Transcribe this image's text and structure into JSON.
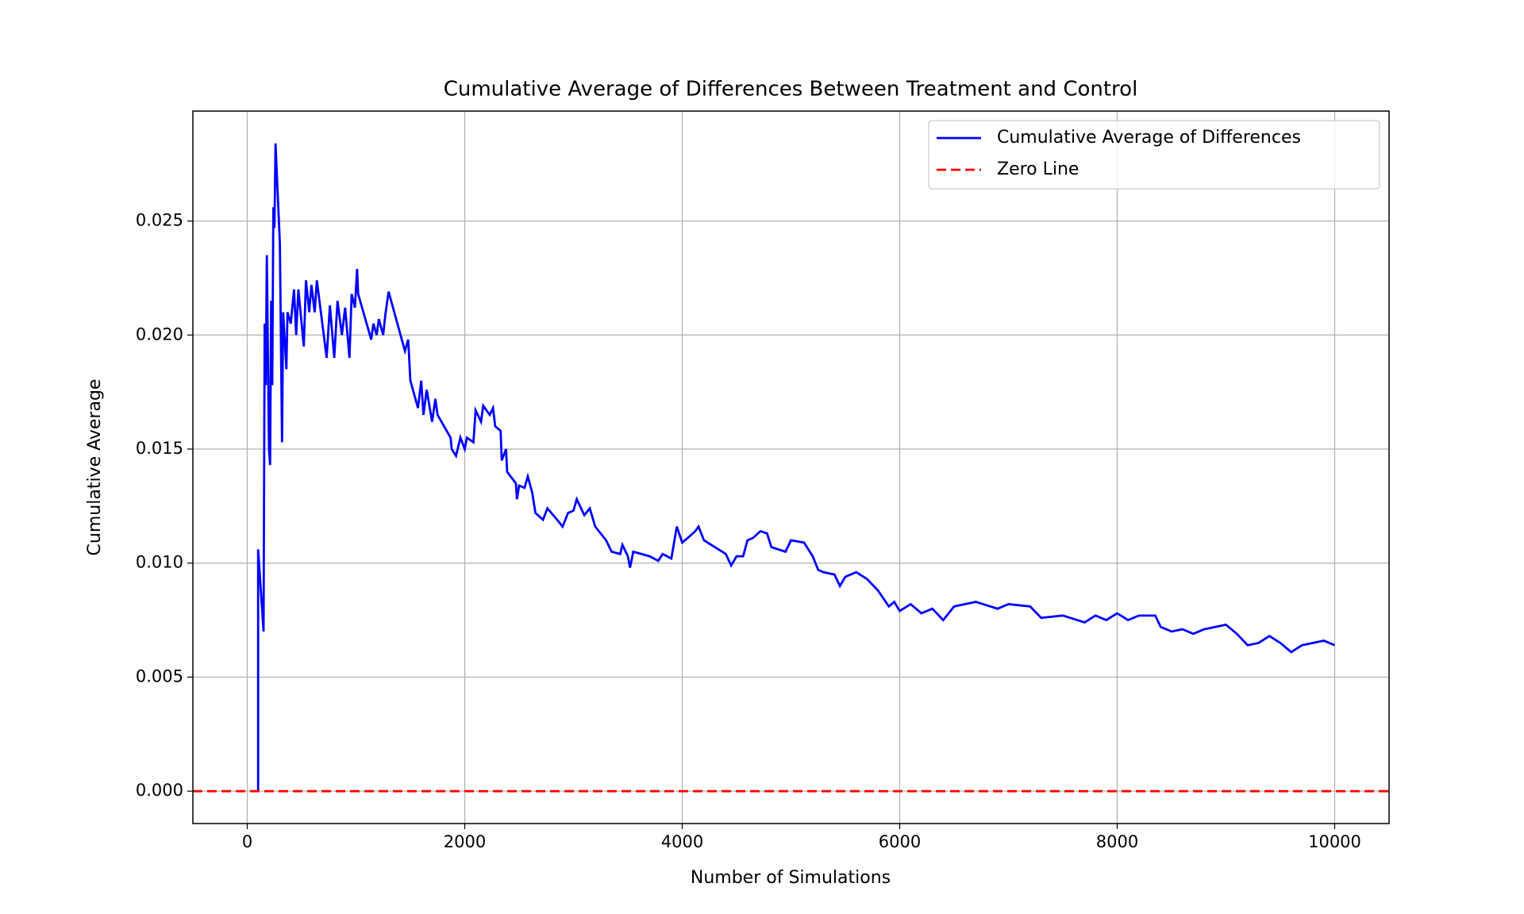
{
  "chart_data": {
    "type": "line",
    "title": "Cumulative Average of Differences Between Treatment and Control",
    "x_label": "Number of Simulations",
    "y_label": "Cumulative Average",
    "xlim": [
      -500,
      10500
    ],
    "ylim": [
      -0.00142,
      0.02982
    ],
    "xticks": [
      0,
      2000,
      4000,
      6000,
      8000,
      10000
    ],
    "yticks": [
      {
        "value": 0,
        "label": "0.000"
      },
      {
        "value": 0.005,
        "label": "0.005"
      },
      {
        "value": 0.01,
        "label": "0.010"
      },
      {
        "value": 0.015,
        "label": "0.015"
      },
      {
        "value": 0.02,
        "label": "0.020"
      },
      {
        "value": 0.025,
        "label": "0.025"
      }
    ],
    "grid": true,
    "legend": "upper right",
    "series": [
      {
        "name": "Cumulative Average of Differences",
        "color": "#0000ff",
        "dash": "solid",
        "x": [
          100,
          100,
          150,
          160,
          170,
          180,
          200,
          210,
          220,
          230,
          240,
          250,
          260,
          300,
          320,
          330,
          360,
          370,
          400,
          430,
          450,
          470,
          520,
          540,
          570,
          590,
          620,
          640,
          730,
          760,
          800,
          830,
          870,
          900,
          940,
          960,
          990,
          1010,
          1020,
          1140,
          1160,
          1190,
          1210,
          1250,
          1270,
          1300,
          1450,
          1480,
          1500,
          1570,
          1600,
          1620,
          1650,
          1700,
          1730,
          1750,
          1870,
          1880,
          1920,
          1960,
          2000,
          2020,
          2080,
          2100,
          2150,
          2170,
          2230,
          2260,
          2280,
          2330,
          2340,
          2380,
          2390,
          2470,
          2480,
          2500,
          2550,
          2580,
          2620,
          2650,
          2720,
          2760,
          2850,
          2900,
          2950,
          3000,
          3030,
          3100,
          3150,
          3200,
          3300,
          3350,
          3430,
          3450,
          3500,
          3520,
          3550,
          3700,
          3780,
          3820,
          3900,
          3950,
          4000,
          4050,
          4120,
          4150,
          4200,
          4300,
          4400,
          4450,
          4500,
          4560,
          4600,
          4650,
          4720,
          4780,
          4820,
          4950,
          5000,
          5120,
          5200,
          5250,
          5300,
          5400,
          5450,
          5500,
          5600,
          5700,
          5800,
          5900,
          5950,
          6000,
          6100,
          6200,
          6300,
          6400,
          6500,
          6700,
          6900,
          7000,
          7200,
          7300,
          7500,
          7700,
          7800,
          7900,
          8000,
          8100,
          8200,
          8350,
          8400,
          8500,
          8600,
          8700,
          8800,
          8900,
          9000,
          9100,
          9200,
          9300,
          9400,
          9500,
          9600,
          9700,
          9800,
          9900,
          10000
        ],
        "values": [
          0,
          0.0106,
          0.007,
          0.0205,
          0.0178,
          0.0235,
          0.015,
          0.0143,
          0.0215,
          0.0178,
          0.0256,
          0.0247,
          0.0284,
          0.024,
          0.0153,
          0.021,
          0.0185,
          0.021,
          0.0205,
          0.022,
          0.02,
          0.022,
          0.0195,
          0.0224,
          0.021,
          0.0222,
          0.021,
          0.0224,
          0.019,
          0.0213,
          0.019,
          0.0215,
          0.02,
          0.0212,
          0.019,
          0.0218,
          0.0212,
          0.0229,
          0.0218,
          0.0198,
          0.0205,
          0.02,
          0.0207,
          0.02,
          0.0209,
          0.0219,
          0.0193,
          0.0198,
          0.018,
          0.0168,
          0.018,
          0.0165,
          0.0176,
          0.0162,
          0.0172,
          0.0165,
          0.0155,
          0.015,
          0.0147,
          0.0155,
          0.015,
          0.0155,
          0.0153,
          0.0167,
          0.0162,
          0.0169,
          0.0165,
          0.0168,
          0.016,
          0.0158,
          0.0145,
          0.015,
          0.014,
          0.0135,
          0.0128,
          0.0134,
          0.0133,
          0.0138,
          0.0131,
          0.0122,
          0.0119,
          0.0124,
          0.0119,
          0.0116,
          0.0122,
          0.0123,
          0.0128,
          0.0121,
          0.0124,
          0.0116,
          0.011,
          0.0105,
          0.0104,
          0.0108,
          0.0103,
          0.0098,
          0.0105,
          0.0103,
          0.0101,
          0.0104,
          0.0102,
          0.0116,
          0.0109,
          0.0111,
          0.0114,
          0.0116,
          0.011,
          0.0107,
          0.0104,
          0.0099,
          0.0103,
          0.0103,
          0.011,
          0.0111,
          0.0114,
          0.0113,
          0.0107,
          0.0105,
          0.011,
          0.0109,
          0.0103,
          0.0097,
          0.0096,
          0.0095,
          0.009,
          0.0094,
          0.0096,
          0.0093,
          0.0088,
          0.0081,
          0.0083,
          0.0079,
          0.0082,
          0.0078,
          0.008,
          0.0075,
          0.0081,
          0.0083,
          0.008,
          0.0082,
          0.0081,
          0.0076,
          0.0077,
          0.0074,
          0.0077,
          0.0075,
          0.0078,
          0.0075,
          0.0077,
          0.0077,
          0.0072,
          0.007,
          0.0071,
          0.0069,
          0.0071,
          0.0072,
          0.0073,
          0.0069,
          0.0064,
          0.0065,
          0.0068,
          0.0065,
          0.0061,
          0.0064,
          0.0065,
          0.0066,
          0.0064
        ]
      },
      {
        "name": "Zero Line",
        "color": "#ff0000",
        "dash": "dashed",
        "x": [
          -500,
          10500
        ],
        "values": [
          0,
          0
        ]
      }
    ]
  }
}
